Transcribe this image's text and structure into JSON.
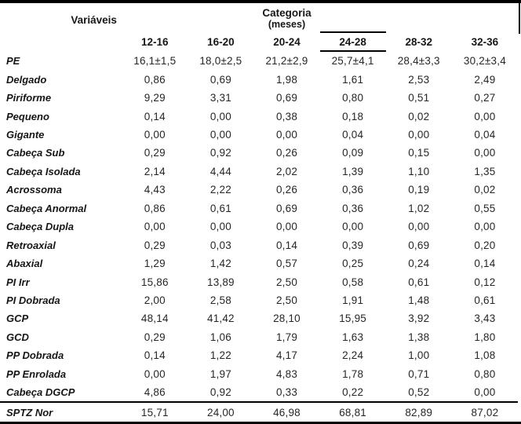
{
  "page": {
    "background": "#ffffff",
    "border_color": "#000000",
    "text_color": "#1d1d1d"
  },
  "table": {
    "header": {
      "variables": "Variáveis",
      "category_title": "Categoria",
      "category_unit": "(meses)"
    },
    "age_columns": [
      "12-16",
      "16-20",
      "20-24",
      "24-28",
      "28-32",
      "32-36"
    ],
    "highlighted_column": "24-28",
    "rows": [
      {
        "label": "PE",
        "values": [
          "16,1±1,5",
          "18,0±2,5",
          "21,2±2,9",
          "25,7±4,1",
          "28,4±3,3",
          "30,2±3,4"
        ]
      },
      {
        "label": "Delgado",
        "values": [
          "0,86",
          "0,69",
          "1,98",
          "1,61",
          "2,53",
          "2,49"
        ]
      },
      {
        "label": "Piriforme",
        "values": [
          "9,29",
          "3,31",
          "0,69",
          "0,80",
          "0,51",
          "0,27"
        ]
      },
      {
        "label": "Pequeno",
        "values": [
          "0,14",
          "0,00",
          "0,38",
          "0,18",
          "0,02",
          "0,00"
        ]
      },
      {
        "label": "Gigante",
        "values": [
          "0,00",
          "0,00",
          "0,00",
          "0,04",
          "0,00",
          "0,04"
        ]
      },
      {
        "label": "Cabeça Sub",
        "values": [
          "0,29",
          "0,92",
          "0,26",
          "0,09",
          "0,15",
          "0,00"
        ]
      },
      {
        "label": "Cabeça Isolada",
        "values": [
          "2,14",
          "4,44",
          "2,02",
          "1,39",
          "1,10",
          "1,35"
        ]
      },
      {
        "label": "Acrossoma",
        "values": [
          "4,43",
          "2,22",
          "0,26",
          "0,36",
          "0,19",
          "0,02"
        ]
      },
      {
        "label": "Cabeça Anormal",
        "values": [
          "0,86",
          "0,61",
          "0,69",
          "0,36",
          "1,02",
          "0,55"
        ]
      },
      {
        "label": "Cabeça Dupla",
        "values": [
          "0,00",
          "0,00",
          "0,00",
          "0,00",
          "0,00",
          "0,00"
        ]
      },
      {
        "label": "Retroaxial",
        "values": [
          "0,29",
          "0,03",
          "0,14",
          "0,39",
          "0,69",
          "0,20"
        ]
      },
      {
        "label": "Abaxial",
        "values": [
          "1,29",
          "1,42",
          "0,57",
          "0,25",
          "0,24",
          "0,14"
        ]
      },
      {
        "label": "PI Irr",
        "values": [
          "15,86",
          "13,89",
          "2,50",
          "0,58",
          "0,61",
          "0,12"
        ]
      },
      {
        "label": "PI Dobrada",
        "values": [
          "2,00",
          "2,58",
          "2,50",
          "1,91",
          "1,48",
          "0,61"
        ]
      },
      {
        "label": "GCP",
        "values": [
          "48,14",
          "41,42",
          "28,10",
          "15,95",
          "3,92",
          "3,43"
        ]
      },
      {
        "label": "GCD",
        "values": [
          "0,29",
          "1,06",
          "1,79",
          "1,63",
          "1,38",
          "1,80"
        ]
      },
      {
        "label": "PP Dobrada",
        "values": [
          "0,14",
          "1,22",
          "4,17",
          "2,24",
          "1,00",
          "1,08"
        ]
      },
      {
        "label": "PP Enrolada",
        "values": [
          "0,00",
          "1,97",
          "4,83",
          "1,78",
          "0,71",
          "0,80"
        ]
      },
      {
        "label": "Cabeça DGCP",
        "values": [
          "4,86",
          "0,92",
          "0,33",
          "0,22",
          "0,52",
          "0,00"
        ]
      },
      {
        "label": "SPTZ Nor",
        "values": [
          "15,71",
          "24,00",
          "46,98",
          "68,81",
          "82,89",
          "87,02"
        ]
      }
    ]
  }
}
